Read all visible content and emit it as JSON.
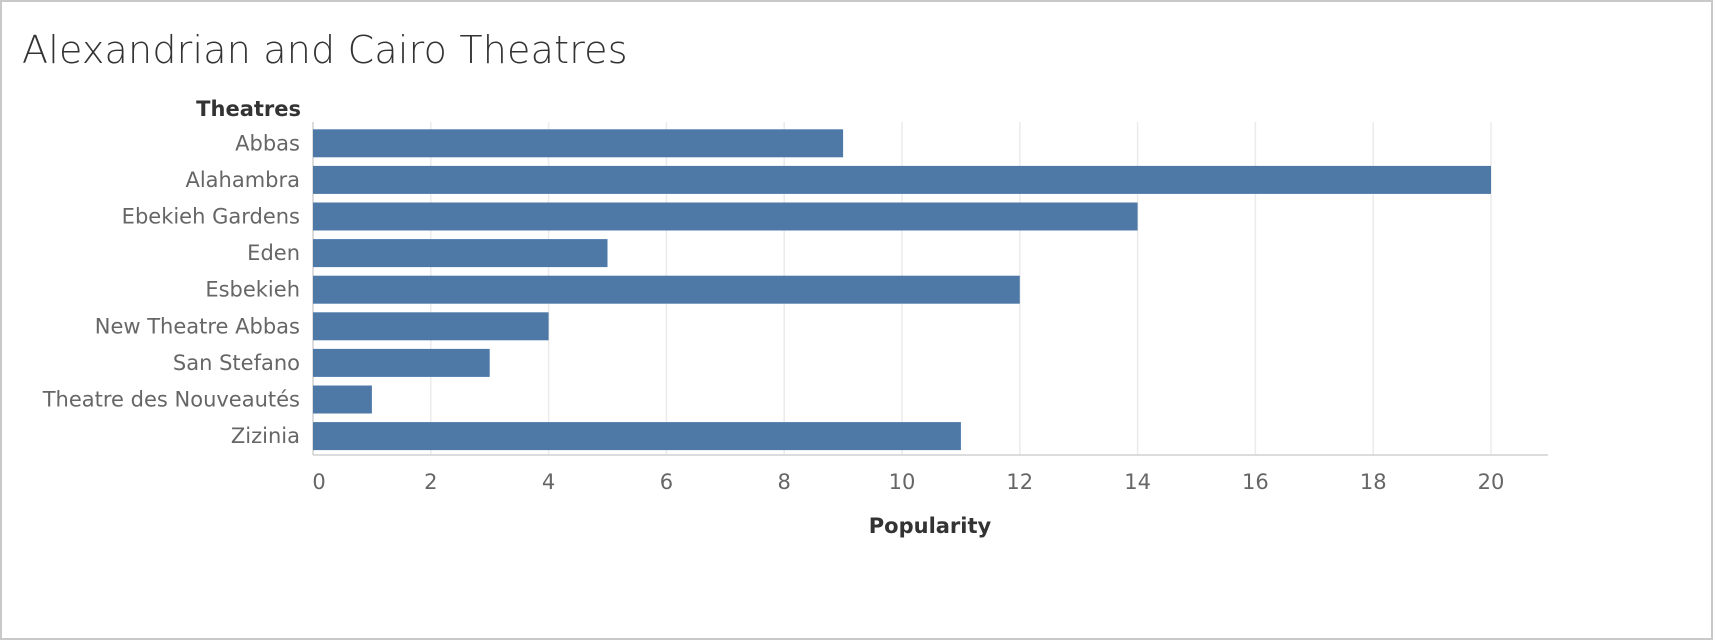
{
  "chart_data": {
    "type": "bar",
    "orientation": "horizontal",
    "title": "Alexandrian and Cairo Theatres",
    "category_header": "Theatres",
    "xlabel": "Popularity",
    "categories": [
      "Abbas",
      "Alahambra",
      "Ebekieh Gardens",
      "Eden",
      "Esbekieh",
      "New Theatre Abbas",
      "San Stefano",
      "Theatre des Nouveautés",
      "Zizinia"
    ],
    "values": [
      9,
      20,
      14,
      5,
      12,
      4,
      3,
      1,
      11
    ],
    "xlim": [
      0,
      21
    ],
    "x_ticks": [
      0,
      2,
      4,
      6,
      8,
      10,
      12,
      14,
      16,
      18,
      20
    ],
    "grid": true,
    "legend": "none",
    "bar_color": "#4e79a7",
    "grid_color": "#ebebeb",
    "axis_color": "#d0d0d0"
  }
}
